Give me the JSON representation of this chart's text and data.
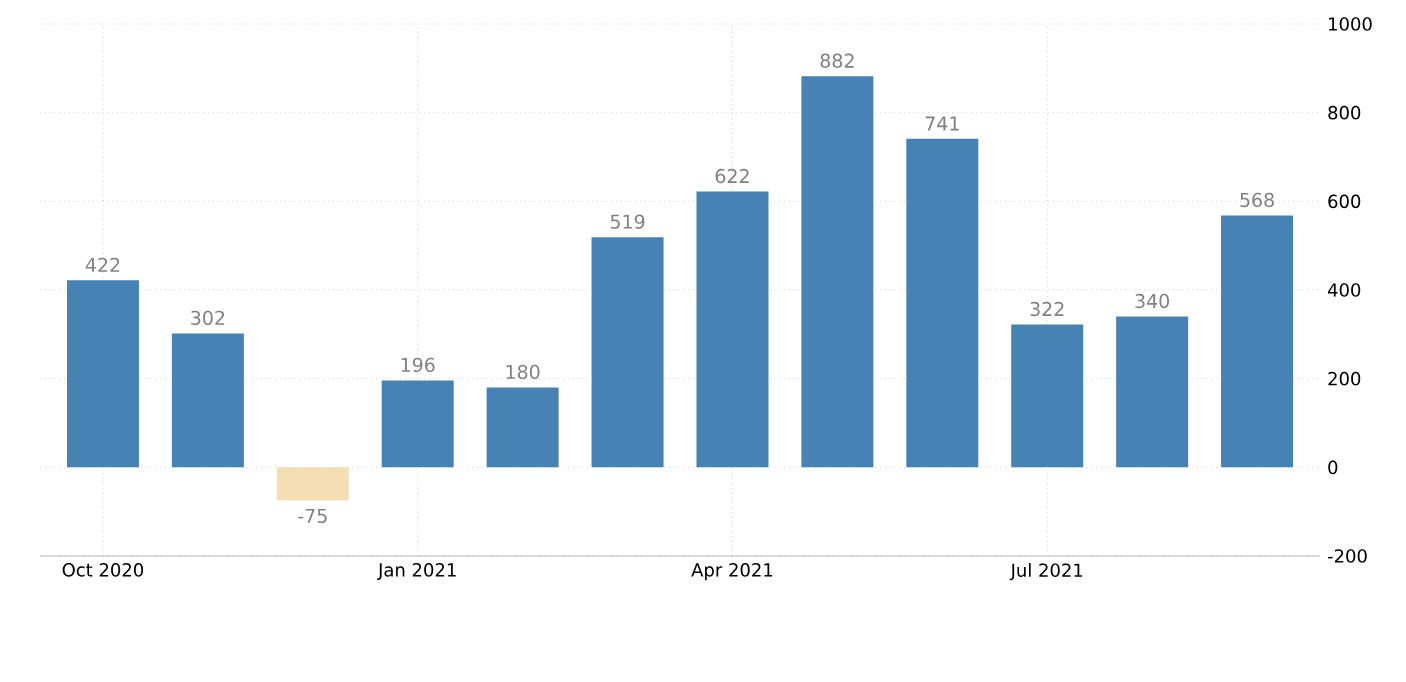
{
  "chart_data": {
    "type": "bar",
    "categories": [
      "Oct 2020",
      null,
      null,
      "Jan 2021",
      null,
      null,
      "Apr 2021",
      null,
      null,
      "Jul 2021",
      null,
      null
    ],
    "values": [
      422,
      302,
      -75,
      196,
      180,
      519,
      622,
      882,
      741,
      322,
      340,
      568
    ],
    "colors": [
      "#4682b4",
      "#4682b4",
      "#f5deb3",
      "#4682b4",
      "#4682b4",
      "#4682b4",
      "#4682b4",
      "#4682b4",
      "#4682b4",
      "#4682b4",
      "#4682b4",
      "#4682b4"
    ],
    "ylim": [
      -200,
      1000
    ],
    "yticks": [
      -200,
      0,
      200,
      400,
      600,
      800,
      1000
    ],
    "grid": true,
    "data_labels": true
  }
}
